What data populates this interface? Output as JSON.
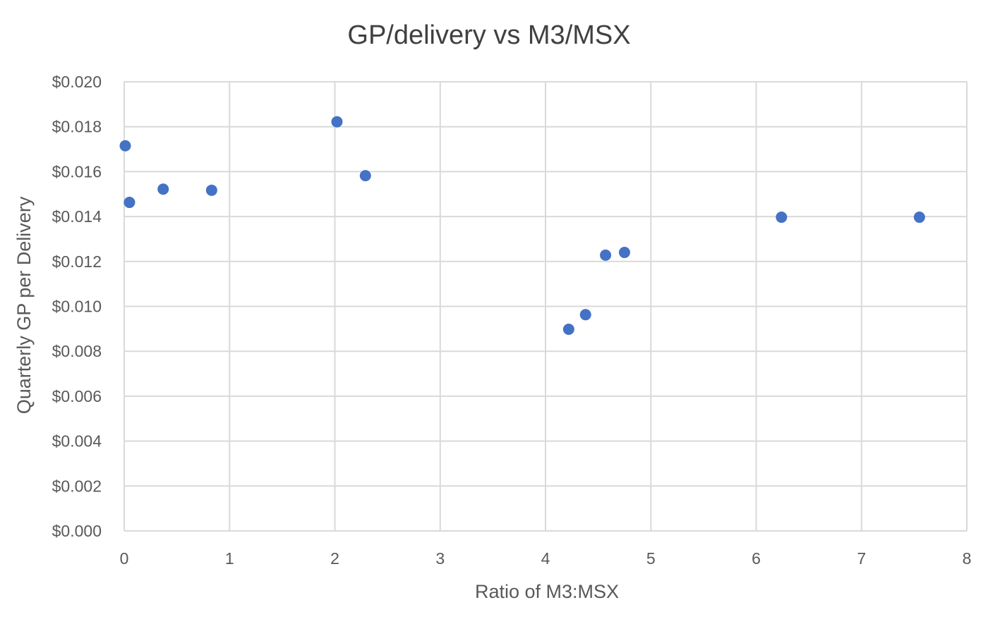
{
  "chart_data": {
    "type": "scatter",
    "title": "GP/delivery vs M3/MSX",
    "xlabel": "Ratio of M3:MSX",
    "ylabel": "Quarterly GP per Delivery",
    "xlim": [
      0,
      8
    ],
    "ylim": [
      0,
      0.02
    ],
    "xticks": [
      0,
      1,
      2,
      3,
      4,
      5,
      6,
      7,
      8
    ],
    "yticks": [
      0,
      0.002,
      0.004,
      0.006,
      0.008,
      0.01,
      0.012,
      0.014,
      0.016,
      0.018,
      0.02
    ],
    "xtick_labels": [
      "0",
      "1",
      "2",
      "3",
      "4",
      "5",
      "6",
      "7",
      "8"
    ],
    "ytick_labels": [
      "$0.000",
      "$0.002",
      "$0.004",
      "$0.006",
      "$0.008",
      "$0.010",
      "$0.012",
      "$0.014",
      "$0.016",
      "$0.018",
      "$0.020"
    ],
    "grid": true,
    "legend": false,
    "marker_color": "#4472C4",
    "points": [
      {
        "x": 0.01,
        "y": 0.01715
      },
      {
        "x": 0.05,
        "y": 0.01463
      },
      {
        "x": 0.37,
        "y": 0.01522
      },
      {
        "x": 0.83,
        "y": 0.01517
      },
      {
        "x": 2.02,
        "y": 0.01822
      },
      {
        "x": 2.29,
        "y": 0.01582
      },
      {
        "x": 4.22,
        "y": 0.00898
      },
      {
        "x": 4.38,
        "y": 0.00963
      },
      {
        "x": 4.57,
        "y": 0.01228
      },
      {
        "x": 4.75,
        "y": 0.0124
      },
      {
        "x": 6.24,
        "y": 0.01397
      },
      {
        "x": 7.55,
        "y": 0.01397
      }
    ]
  }
}
